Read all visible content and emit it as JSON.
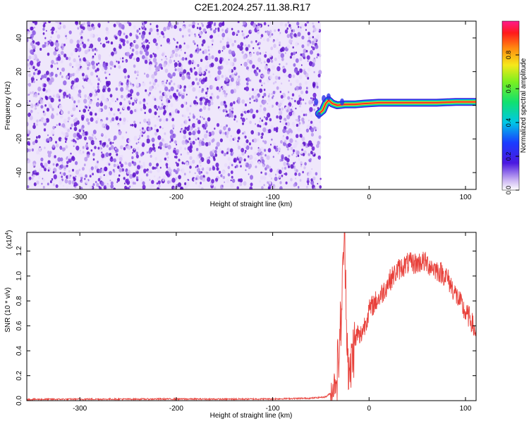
{
  "title": "C2E1.2024.257.11.38.R17",
  "colors": {
    "snr_line": "#e8403a",
    "scatter": "#6a1cd6",
    "frame": "#000000"
  },
  "chart_data": [
    {
      "type": "heatmap",
      "xlabel": "Height of straight line (km)",
      "ylabel": "Frequency (Hz)",
      "xlim": [
        -355,
        111
      ],
      "ylim": [
        -50,
        50
      ],
      "x_ticks": [
        "-300",
        "-200",
        "-100",
        "0",
        "100"
      ],
      "x_tick_values": [
        -300,
        -200,
        -100,
        0,
        100
      ],
      "y_ticks": [
        "40",
        "20",
        "0",
        "-20",
        "-40"
      ],
      "y_tick_values": [
        40,
        20,
        0,
        -20,
        -40
      ],
      "noise_region_x": [
        -355,
        -50
      ],
      "signal_track": [
        {
          "x": -52,
          "y": -5
        },
        {
          "x": -48,
          "y": -3
        },
        {
          "x": -45,
          "y": 1
        },
        {
          "x": -42,
          "y": 3
        },
        {
          "x": -38,
          "y": 1
        },
        {
          "x": -33,
          "y": 0
        },
        {
          "x": -25,
          "y": 0.5
        },
        {
          "x": -15,
          "y": 0.5
        },
        {
          "x": -5,
          "y": 1
        },
        {
          "x": 10,
          "y": 1.5
        },
        {
          "x": 40,
          "y": 1.5
        },
        {
          "x": 70,
          "y": 1.5
        },
        {
          "x": 90,
          "y": 2
        },
        {
          "x": 111,
          "y": 2
        }
      ],
      "colorbar": {
        "label": "Normalized spectral amplitude",
        "range": [
          0,
          1
        ],
        "ticks": [
          "0.0",
          "0.2",
          "0.4",
          "0.6",
          "0.8"
        ],
        "tick_values": [
          0,
          0.2,
          0.4,
          0.6,
          0.8
        ]
      }
    },
    {
      "type": "line",
      "xlabel": "Height of straight line (km)",
      "ylabel": "SNR (10 * v/v)",
      "scale_label": "(x10",
      "scale_exponent": "4",
      "scale_suffix": ")",
      "xlim": [
        -355,
        111
      ],
      "ylim": [
        0,
        1.35
      ],
      "x_ticks": [
        "-300",
        "-200",
        "-100",
        "0",
        "100"
      ],
      "x_tick_values": [
        -300,
        -200,
        -100,
        0,
        100
      ],
      "y_ticks": [
        "0.0",
        "0.2",
        "0.4",
        "0.6",
        "0.8",
        "1.0",
        "1.2"
      ],
      "y_tick_values": [
        0,
        0.2,
        0.4,
        0.6,
        0.8,
        1.0,
        1.2
      ],
      "series": [
        {
          "x": [
            -355,
            -300,
            -250,
            -200,
            -150,
            -100,
            -60,
            -45,
            -40,
            -35,
            -32,
            -30,
            -28,
            -27,
            -26,
            -25,
            -24,
            -23,
            -22,
            -20,
            -18,
            -15,
            -12,
            -10,
            -5,
            0,
            5,
            10,
            15,
            20,
            30,
            40,
            50,
            55,
            60,
            70,
            80,
            90,
            95,
            100,
            105,
            110,
            111
          ],
          "y": [
            0.01,
            0.012,
            0.012,
            0.013,
            0.012,
            0.014,
            0.02,
            0.03,
            0.06,
            0.15,
            0.3,
            0.55,
            0.8,
            1.1,
            1.32,
            1.2,
            0.9,
            0.6,
            0.35,
            0.15,
            0.35,
            0.45,
            0.55,
            0.5,
            0.6,
            0.72,
            0.78,
            0.82,
            0.88,
            0.95,
            1.05,
            1.1,
            1.1,
            1.12,
            1.1,
            1.05,
            1.0,
            0.85,
            0.78,
            0.7,
            0.66,
            0.55,
            0.55
          ]
        }
      ]
    }
  ]
}
